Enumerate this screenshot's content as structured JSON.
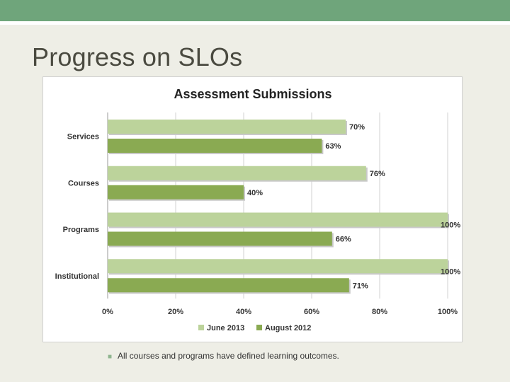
{
  "slide": {
    "title": "Progress on SLOs",
    "bullet": "All courses and programs have defined learning outcomes."
  },
  "colors": {
    "top_bar": "#6fa57b",
    "series_june": "#bcd39b",
    "series_august": "#8aaa52"
  },
  "chart_data": {
    "type": "bar",
    "orientation": "horizontal",
    "title": "Assessment Submissions",
    "categories": [
      "Services",
      "Courses",
      "Programs",
      "Institutional"
    ],
    "series": [
      {
        "name": "June 2013",
        "values": [
          70,
          76,
          100,
          100
        ],
        "color": "#bcd39b"
      },
      {
        "name": "August 2012",
        "values": [
          63,
          40,
          66,
          71
        ],
        "color": "#8aaa52"
      }
    ],
    "value_suffix": "%",
    "xlim": [
      0,
      100
    ],
    "xticks": [
      0,
      20,
      40,
      60,
      80,
      100
    ],
    "xtick_labels": [
      "0%",
      "20%",
      "40%",
      "60%",
      "80%",
      "100%"
    ],
    "grid": "vertical",
    "legend": "bottom"
  }
}
